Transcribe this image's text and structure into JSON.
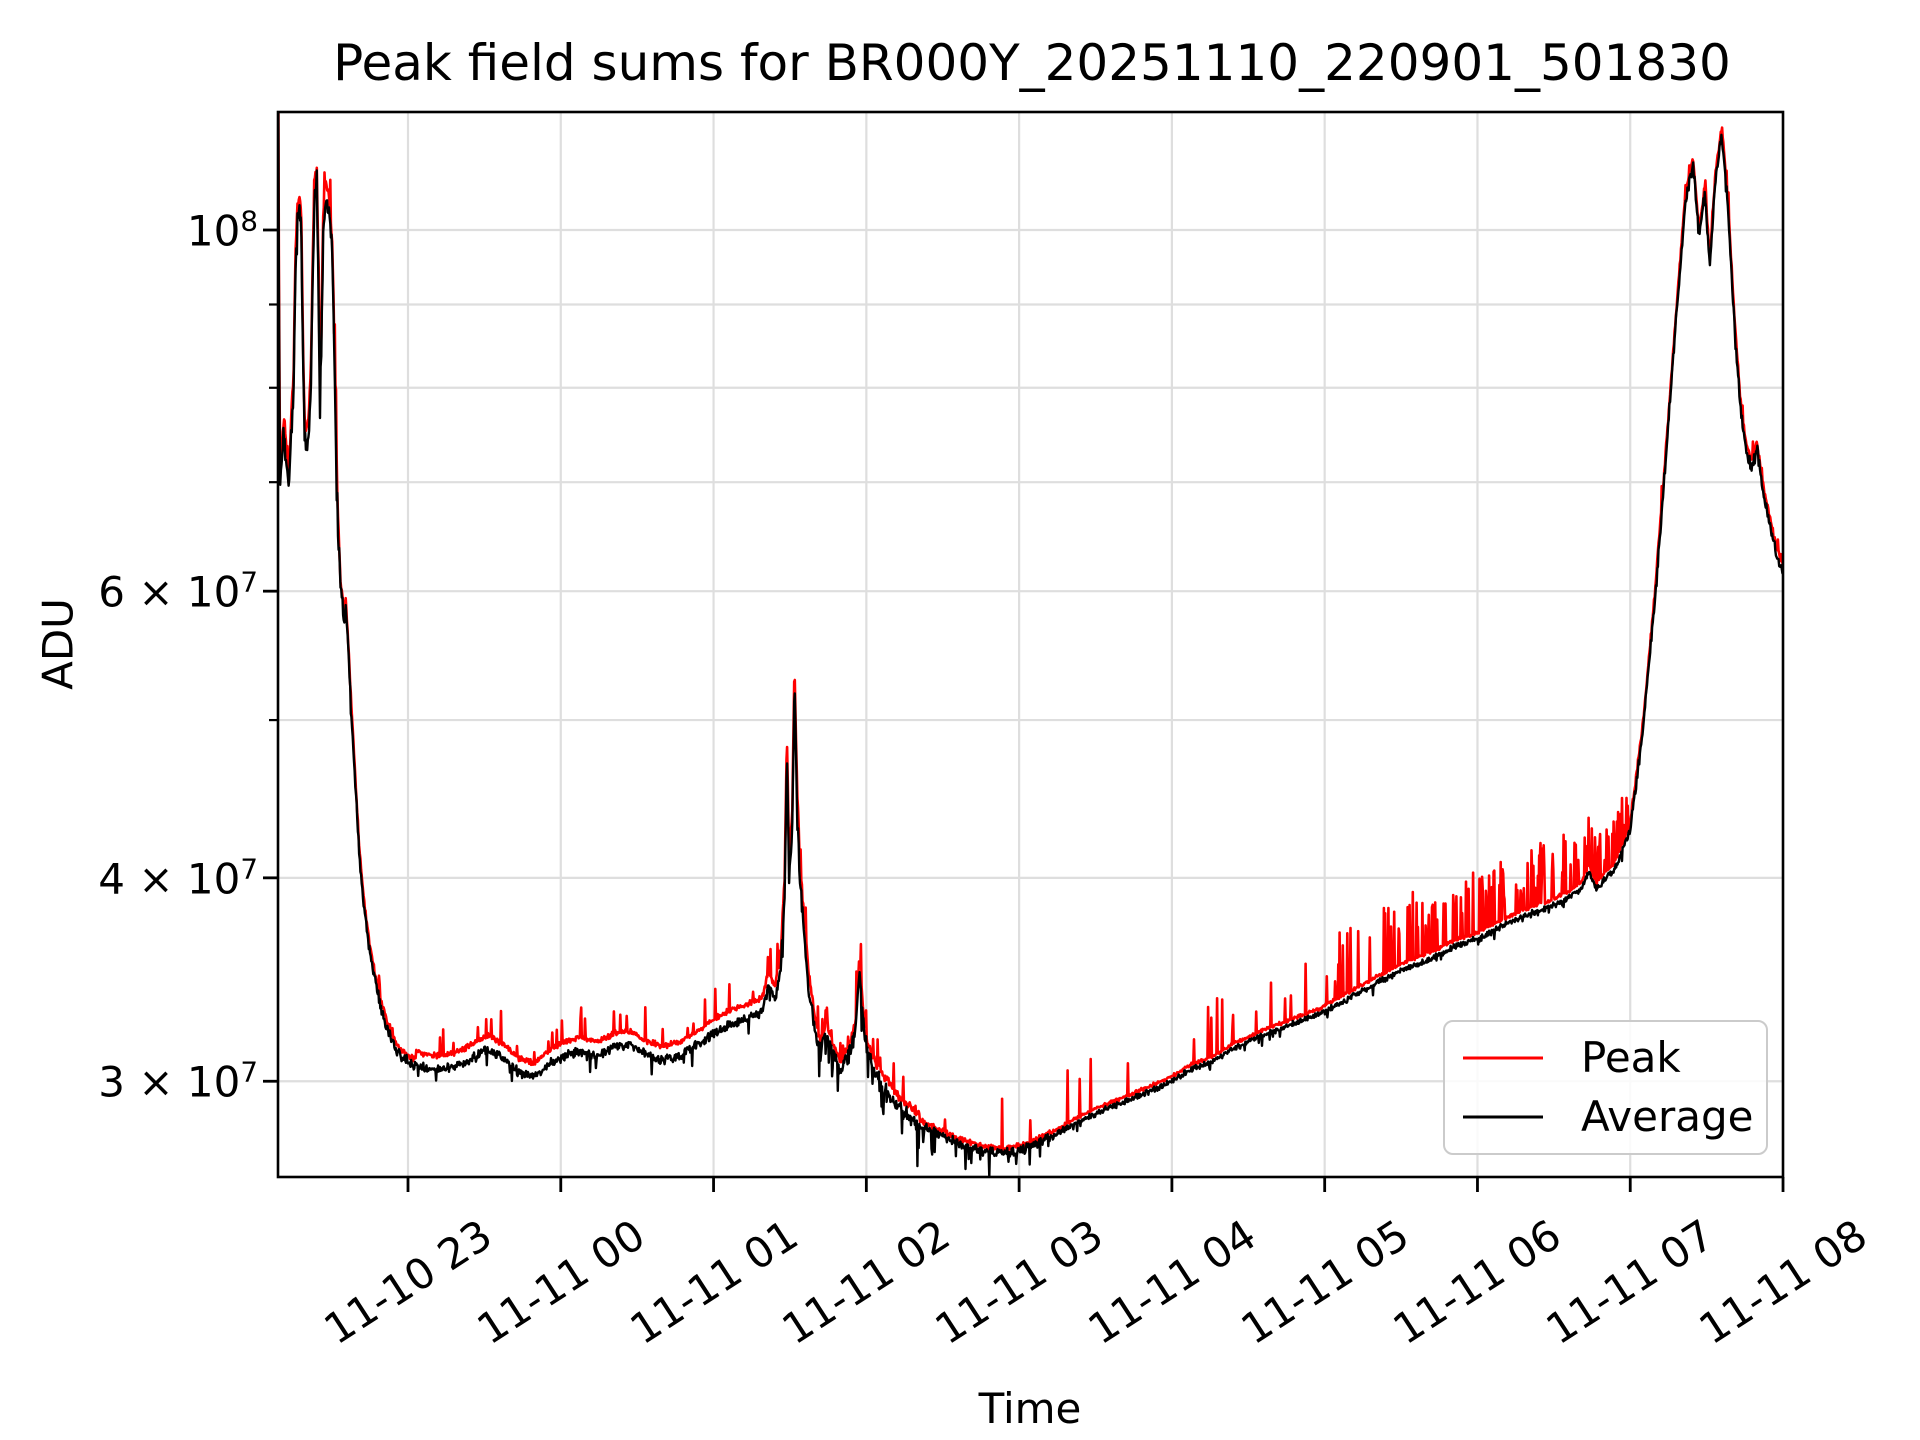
{
  "title": "Peak field sums for BR000Y_20251110_220901_501830",
  "legend": {
    "items": [
      {
        "label": "Peak",
        "color": "#ff0000"
      },
      {
        "label": "Average",
        "color": "#000000"
      }
    ]
  },
  "chart_data": {
    "type": "line",
    "title": "Peak field sums for BR000Y_20251110_220901_501830",
    "xlabel": "Time",
    "ylabel": "ADU",
    "y_scale": "log",
    "ylim": [
      26200000.0,
      118300000.0
    ],
    "x_unit_hours_after": "11-10 22:00",
    "x_range_hours": [
      0.151,
      10.0
    ],
    "grid": true,
    "legend_position": "lower right",
    "colors": {
      "grid": "#dedede",
      "axis": "#000000",
      "background": "#ffffff"
    },
    "x_ticks": [
      {
        "label": "11-10 23",
        "hour": 1
      },
      {
        "label": "11-11 00",
        "hour": 2
      },
      {
        "label": "11-11 01",
        "hour": 3
      },
      {
        "label": "11-11 02",
        "hour": 4
      },
      {
        "label": "11-11 03",
        "hour": 5
      },
      {
        "label": "11-11 04",
        "hour": 6
      },
      {
        "label": "11-11 05",
        "hour": 7
      },
      {
        "label": "11-11 06",
        "hour": 8
      },
      {
        "label": "11-11 07",
        "hour": 9
      },
      {
        "label": "11-11 08",
        "hour": 10
      }
    ],
    "y_ticks": [
      {
        "coeff": "",
        "exp": "8",
        "value": 100000000.0
      },
      {
        "coeff": "6",
        "exp": "7",
        "value": 60000000.0
      },
      {
        "coeff": "4",
        "exp": "7",
        "value": 40000000.0
      },
      {
        "coeff": "3",
        "exp": "7",
        "value": 30000000.0
      }
    ],
    "y_minor_gridlines": [
      90000000.0,
      80000000.0,
      70000000.0,
      50000000.0
    ],
    "series": [
      {
        "name": "Peak",
        "color": "#ff0000",
        "derived_from": "Average",
        "base_offset_regions": [
          [
            0.151,
            0.55,
            0.022
          ],
          [
            0.55,
            1.05,
            0.01
          ],
          [
            1.05,
            3.45,
            0.02
          ],
          [
            3.45,
            3.62,
            0.025
          ],
          [
            3.62,
            4.35,
            0.015
          ],
          [
            4.35,
            5.3,
            0.006
          ],
          [
            5.3,
            7.0,
            0.007
          ],
          [
            7.0,
            9.0,
            0.009
          ],
          [
            9.0,
            10.01,
            0.01
          ]
        ],
        "spike_regions": [
          [
            0.151,
            0.55,
            0.1,
            0.05
          ],
          [
            0.55,
            1.05,
            0.03,
            0.03
          ],
          [
            1.05,
            1.9,
            0.05,
            0.05
          ],
          [
            1.9,
            3.4,
            0.07,
            0.05
          ],
          [
            3.4,
            4.3,
            0.09,
            0.05
          ],
          [
            4.3,
            5.25,
            0.015,
            0.08
          ],
          [
            5.25,
            6.1,
            0.03,
            0.09
          ],
          [
            6.1,
            6.9,
            0.07,
            0.1
          ],
          [
            6.9,
            7.6,
            0.14,
            0.1
          ],
          [
            7.6,
            8.6,
            0.22,
            0.09
          ],
          [
            8.6,
            9.0,
            0.3,
            0.07
          ],
          [
            9.0,
            10.01,
            0.1,
            0.025
          ]
        ]
      },
      {
        "name": "Average",
        "color": "#000000",
        "noise_regions": [
          [
            0.151,
            0.55,
            0.012,
            0.02,
            0.05
          ],
          [
            0.55,
            1.05,
            0.006,
            0.02,
            0.02
          ],
          [
            1.05,
            3.4,
            0.005,
            0.04,
            0.025
          ],
          [
            3.4,
            4.35,
            0.008,
            0.12,
            0.05
          ],
          [
            4.35,
            5.2,
            0.005,
            0.1,
            0.035
          ],
          [
            5.2,
            7.0,
            0.003,
            0.04,
            0.015
          ],
          [
            7.0,
            9.0,
            0.003,
            0.05,
            0.012
          ],
          [
            9.0,
            10.01,
            0.006,
            0.02,
            0.01
          ]
        ],
        "keyframes": [
          [
            0.151,
            122000000.0
          ],
          [
            0.157,
            82000000.0
          ],
          [
            0.163,
            70000000.0
          ],
          [
            0.175,
            72500000.0
          ],
          [
            0.19,
            75500000.0
          ],
          [
            0.205,
            71000000.0
          ],
          [
            0.22,
            69000000.0
          ],
          [
            0.235,
            75000000.0
          ],
          [
            0.25,
            79000000.0
          ],
          [
            0.262,
            93000000.0
          ],
          [
            0.275,
            101500000.0
          ],
          [
            0.29,
            103000000.0
          ],
          [
            0.302,
            99000000.0
          ],
          [
            0.312,
            84000000.0
          ],
          [
            0.322,
            75000000.0
          ],
          [
            0.335,
            73500000.0
          ],
          [
            0.35,
            75000000.0
          ],
          [
            0.365,
            81000000.0
          ],
          [
            0.378,
            96000000.0
          ],
          [
            0.39,
            105000000.0
          ],
          [
            0.403,
            107000000.0
          ],
          [
            0.413,
            94000000.0
          ],
          [
            0.422,
            79000000.0
          ],
          [
            0.432,
            83000000.0
          ],
          [
            0.445,
            100000000.0
          ],
          [
            0.458,
            104500000.0
          ],
          [
            0.472,
            104000000.0
          ],
          [
            0.488,
            102000000.0
          ],
          [
            0.505,
            96000000.0
          ],
          [
            0.52,
            82000000.0
          ],
          [
            0.54,
            66000000.0
          ],
          [
            0.56,
            60000000.0
          ],
          [
            0.572,
            59000000.0
          ],
          [
            0.582,
            57200000.0
          ],
          [
            0.592,
            58800000.0
          ],
          [
            0.605,
            56000000.0
          ],
          [
            0.625,
            51500000.0
          ],
          [
            0.65,
            46500000.0
          ],
          [
            0.68,
            41500000.0
          ],
          [
            0.71,
            38500000.0
          ],
          [
            0.75,
            36000000.0
          ],
          [
            0.8,
            34000000.0
          ],
          [
            0.86,
            32400000.0
          ],
          [
            0.93,
            31200000.0
          ],
          [
            1.0,
            30800000.0
          ],
          [
            1.1,
            30600000.0
          ],
          [
            1.2,
            30500000.0
          ],
          [
            1.3,
            30600000.0
          ],
          [
            1.42,
            31000000.0
          ],
          [
            1.52,
            31400000.0
          ],
          [
            1.62,
            31000000.0
          ],
          [
            1.72,
            30400000.0
          ],
          [
            1.82,
            30200000.0
          ],
          [
            1.92,
            30700000.0
          ],
          [
            2.02,
            31100000.0
          ],
          [
            2.12,
            31300000.0
          ],
          [
            2.25,
            31100000.0
          ],
          [
            2.35,
            31500000.0
          ],
          [
            2.45,
            31600000.0
          ],
          [
            2.55,
            31200000.0
          ],
          [
            2.65,
            30900000.0
          ],
          [
            2.78,
            31100000.0
          ],
          [
            2.9,
            31600000.0
          ],
          [
            3.0,
            32100000.0
          ],
          [
            3.1,
            32500000.0
          ],
          [
            3.22,
            32800000.0
          ],
          [
            3.32,
            33100000.0
          ],
          [
            3.36,
            34400000.0
          ],
          [
            3.4,
            33600000.0
          ],
          [
            3.44,
            35200000.0
          ],
          [
            3.465,
            39000000.0
          ],
          [
            3.48,
            47800000.0
          ],
          [
            3.495,
            40000000.0
          ],
          [
            3.515,
            43000000.0
          ],
          [
            3.53,
            52800000.0
          ],
          [
            3.545,
            45000000.0
          ],
          [
            3.565,
            40000000.0
          ],
          [
            3.59,
            37200000.0
          ],
          [
            3.62,
            34500000.0
          ],
          [
            3.66,
            32500000.0
          ],
          [
            3.7,
            31200000.0
          ],
          [
            3.74,
            32200000.0
          ],
          [
            3.78,
            31200000.0
          ],
          [
            3.83,
            30400000.0
          ],
          [
            3.88,
            31000000.0
          ],
          [
            3.93,
            32200000.0
          ],
          [
            3.955,
            35200000.0
          ],
          [
            3.98,
            32600000.0
          ],
          [
            4.01,
            31200000.0
          ],
          [
            4.05,
            30500000.0
          ],
          [
            4.12,
            29700000.0
          ],
          [
            4.22,
            28900000.0
          ],
          [
            4.33,
            28300000.0
          ],
          [
            4.46,
            27900000.0
          ],
          [
            4.6,
            27500000.0
          ],
          [
            4.75,
            27200000.0
          ],
          [
            4.9,
            27100000.0
          ],
          [
            5.05,
            27300000.0
          ],
          [
            5.2,
            27700000.0
          ],
          [
            5.35,
            28200000.0
          ],
          [
            5.55,
            28800000.0
          ],
          [
            5.75,
            29300000.0
          ],
          [
            5.9,
            29700000.0
          ],
          [
            6.0,
            30000000.0
          ],
          [
            6.12,
            30500000.0
          ],
          [
            6.25,
            30800000.0
          ],
          [
            6.4,
            31400000.0
          ],
          [
            6.55,
            31900000.0
          ],
          [
            6.7,
            32300000.0
          ],
          [
            6.85,
            32700000.0
          ],
          [
            7.0,
            33100000.0
          ],
          [
            7.15,
            33700000.0
          ],
          [
            7.3,
            34300000.0
          ],
          [
            7.5,
            35100000.0
          ],
          [
            7.7,
            35700000.0
          ],
          [
            7.85,
            36300000.0
          ],
          [
            8.0,
            36700000.0
          ],
          [
            8.15,
            37300000.0
          ],
          [
            8.3,
            37900000.0
          ],
          [
            8.45,
            38300000.0
          ],
          [
            8.6,
            38900000.0
          ],
          [
            8.68,
            39400000.0
          ],
          [
            8.73,
            40400000.0
          ],
          [
            8.78,
            39300000.0
          ],
          [
            8.83,
            39900000.0
          ],
          [
            8.9,
            40500000.0
          ],
          [
            9.0,
            42800000.0
          ],
          [
            9.08,
            49000000.0
          ],
          [
            9.16,
            59000000.0
          ],
          [
            9.24,
            74000000.0
          ],
          [
            9.3,
            88000000.0
          ],
          [
            9.36,
            104000000.0
          ],
          [
            9.41,
            110000000.0
          ],
          [
            9.45,
            99000000.0
          ],
          [
            9.49,
            105500000.0
          ],
          [
            9.52,
            95000000.0
          ],
          [
            9.56,
            108000000.0
          ],
          [
            9.6,
            114500000.0
          ],
          [
            9.64,
            103000000.0
          ],
          [
            9.68,
            88000000.0
          ],
          [
            9.72,
            78000000.0
          ],
          [
            9.76,
            73000000.0
          ],
          [
            9.8,
            71500000.0
          ],
          [
            9.83,
            73500000.0
          ],
          [
            9.87,
            69000000.0
          ],
          [
            9.92,
            65500000.0
          ],
          [
            9.96,
            63000000.0
          ],
          [
            10.0,
            61500000.0
          ]
        ]
      }
    ]
  }
}
